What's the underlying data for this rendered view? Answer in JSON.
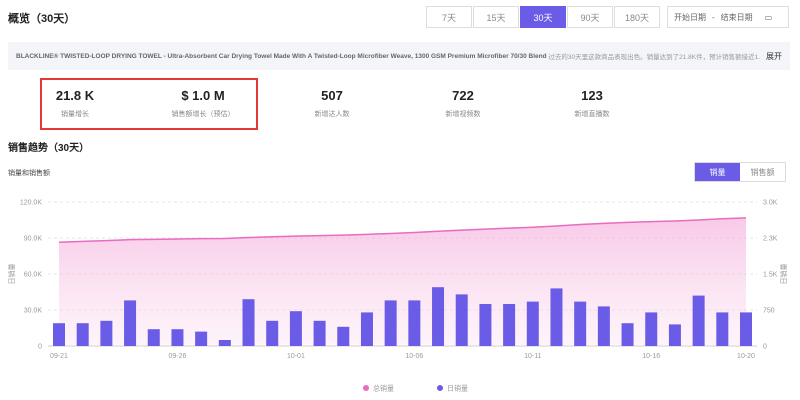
{
  "header": {
    "title": "概览（30天）",
    "tabs": [
      "7天",
      "15天",
      "30天",
      "90天",
      "180天"
    ],
    "active_tab": 2,
    "date_start": "开始日期",
    "date_sep": "-",
    "date_end": "结束日期"
  },
  "product": {
    "name": "BLACKLINE® TWISTED-LOOP DRYING TOWEL - Ultra-Absorbent Car Drying Towel Made With A Twisted-Loop Microfiber Weave, 1300 GSM Premium Microfiber 70/30 Blend",
    "summary": "过去的30天里这款商品表现出色。销量达到了21.8K件，预计销售额接近1.",
    "expand": "展开"
  },
  "stats": [
    {
      "value": "21.8 K",
      "label": "销量增长"
    },
    {
      "value": "$ 1.0 M",
      "label": "销售额增长（预估）"
    },
    {
      "value": "507",
      "label": "新增达人数"
    },
    {
      "value": "722",
      "label": "新增视频数"
    },
    {
      "value": "123",
      "label": "新增直播数"
    }
  ],
  "section": {
    "title": "销售趋势（30天）",
    "subtitle": "销量和销售额",
    "toggle": [
      "销量",
      "销售额"
    ],
    "active_toggle": 0
  },
  "chart_data": {
    "type": "bar",
    "categories": [
      "09-21",
      null,
      null,
      null,
      null,
      "09-26",
      null,
      null,
      null,
      null,
      "10-01",
      null,
      null,
      null,
      null,
      "10-06",
      null,
      null,
      null,
      null,
      "10-11",
      null,
      null,
      null,
      null,
      "10-16",
      null,
      null,
      null,
      "10-20"
    ],
    "series": [
      {
        "name": "总销量",
        "type": "area",
        "color": "#e86cc0",
        "axis": "y",
        "values": [
          86500,
          87200,
          87800,
          88600,
          88900,
          89200,
          89500,
          89600,
          90400,
          91000,
          91600,
          92000,
          92400,
          93000,
          93800,
          94600,
          95600,
          96600,
          97400,
          98200,
          99000,
          100000,
          101200,
          102200,
          103000,
          103600,
          104200,
          105000,
          106000,
          106800
        ]
      },
      {
        "name": "日销量",
        "type": "bar",
        "color": "#6b5ce7",
        "axis": "y2",
        "values": [
          475,
          475,
          525,
          950,
          350,
          350,
          300,
          125,
          975,
          525,
          725,
          525,
          400,
          700,
          950,
          950,
          1225,
          1075,
          875,
          875,
          925,
          1200,
          925,
          825,
          475,
          700,
          450,
          1050,
          700,
          700
        ]
      }
    ],
    "ylim": [
      0,
      120000
    ],
    "yticks": [
      0,
      {
        "value": 30000,
        "label": "30.0K"
      },
      {
        "value": 60000,
        "label": "60.0K"
      },
      {
        "value": 90000,
        "label": "90.0K"
      },
      {
        "value": 120000,
        "label": "120.0K"
      }
    ],
    "y2lim": [
      0,
      3000
    ],
    "y2ticks": [
      0,
      750,
      {
        "value": 1500,
        "label": "1.5K"
      },
      {
        "value": 2250,
        "label": "2.3K"
      },
      {
        "value": 3000,
        "label": "3.0K"
      }
    ],
    "ylabel": "日销量",
    "y2label": "日销量",
    "grid": true,
    "legend": "bottom"
  }
}
